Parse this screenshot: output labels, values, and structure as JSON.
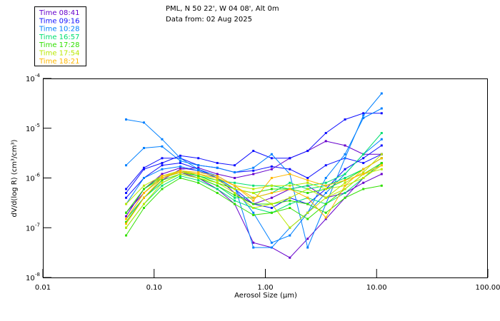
{
  "header": {
    "line1": "PML, N 50 22', W 04 08', Alt 0m",
    "line2": "Data from: 02 Aug 2025"
  },
  "chart_data": {
    "type": "line",
    "title": "PML, N 50 22', W 04 08', Alt 0m — Data from: 02 Aug 2025",
    "xlabel": "Aerosol Size (µm)",
    "ylabel": "dV/d(log R) (cm³/cm³)",
    "xscale": "log",
    "yscale": "log",
    "xlim": [
      0.01,
      100
    ],
    "ylim": [
      1e-08,
      0.0001
    ],
    "xticks": [
      0.01,
      0.1,
      1,
      10,
      100
    ],
    "xtick_labels": [
      "0.01",
      "0.10",
      "1.00",
      "10.00",
      "100.00"
    ],
    "yticks": [
      0.0001,
      1e-05,
      1e-06,
      1e-07,
      1e-08
    ],
    "ytick_exponents": [
      "-4",
      "-5",
      "-6",
      "-7",
      "-8"
    ],
    "ytick_base": "10",
    "legend_placement": "top-left",
    "grid": false,
    "x": [
      0.056,
      0.081,
      0.118,
      0.172,
      0.25,
      0.37,
      0.53,
      0.78,
      1.14,
      1.66,
      2.4,
      3.5,
      5.2,
      7.6,
      11.1
    ],
    "series": [
      {
        "name": "Time 08:41",
        "color": "#6600cc",
        "lines": [
          [
            2e-07,
            5e-07,
            1e-06,
            1.3e-06,
            1e-06,
            6e-07,
            3e-07,
            5e-08,
            4e-08,
            2.5e-08,
            6e-08,
            1.5e-07,
            4e-07,
            1e-06,
            2e-06
          ],
          [
            1.5e-07,
            4e-07,
            9e-07,
            1.5e-06,
            1.6e-06,
            1.2e-06,
            1e-06,
            1.2e-06,
            1.5e-06,
            2.5e-06,
            3.5e-06,
            5.5e-06,
            4.5e-06,
            3e-06,
            3e-06
          ],
          [
            1.7e-07,
            6e-07,
            1.2e-06,
            1.6e-06,
            1.4e-06,
            1e-06,
            5e-07,
            3e-07,
            4e-07,
            6e-07,
            7e-07,
            4e-07,
            5e-07,
            8e-07,
            1.2e-06
          ]
        ]
      },
      {
        "name": "Time 09:16",
        "color": "#1010ff",
        "lines": [
          [
            5e-07,
            1.5e-06,
            2e-06,
            2.8e-06,
            2.5e-06,
            2e-06,
            1.8e-06,
            3.5e-06,
            2.5e-06,
            2.5e-06,
            3.5e-06,
            8e-06,
            1.5e-05,
            2e-05,
            2e-05
          ],
          [
            6e-07,
            1.6e-06,
            2.5e-06,
            2.5e-06,
            1.8e-06,
            1.6e-06,
            1.3e-06,
            1.4e-06,
            1.7e-06,
            1.5e-06,
            1e-06,
            1.8e-06,
            2.5e-06,
            2e-06,
            3e-06
          ],
          [
            4e-07,
            1e-06,
            1.8e-06,
            2e-06,
            1.5e-06,
            1e-06,
            6e-07,
            3e-07,
            2.5e-07,
            4e-07,
            3e-07,
            6e-07,
            1.5e-06,
            2.5e-06,
            4.5e-06
          ]
        ]
      },
      {
        "name": "Time 10:28",
        "color": "#0080ff",
        "lines": [
          [
            1.5e-05,
            1.3e-05,
            6e-06,
            2.5e-06,
            1.5e-06,
            1.1e-06,
            7e-07,
            4e-08,
            4e-08,
            1e-07,
            2e-07,
            5e-07,
            1.2e-06,
            3e-06,
            6e-06
          ],
          [
            1.8e-06,
            4e-06,
            4.3e-06,
            2.2e-06,
            1.8e-06,
            1.6e-06,
            1.3e-06,
            1.6e-06,
            3e-06,
            1.2e-06,
            4e-08,
            3e-07,
            2.5e-06,
            1.8e-05,
            5e-05
          ],
          [
            3e-07,
            1e-06,
            1.5e-06,
            1.7e-06,
            1.4e-06,
            1e-06,
            6e-07,
            2e-07,
            5e-08,
            7e-08,
            2e-07,
            1e-06,
            3e-06,
            1.6e-05,
            2.5e-05
          ]
        ]
      },
      {
        "name": "Time 16:57",
        "color": "#00e070",
        "lines": [
          [
            2e-07,
            6e-07,
            1e-06,
            1.4e-06,
            1.1e-06,
            9e-07,
            8e-07,
            7e-07,
            7e-07,
            6e-07,
            7e-07,
            8e-07,
            1.2e-06,
            3e-06,
            8e-06
          ],
          [
            1.5e-07,
            4e-07,
            8e-07,
            1.2e-06,
            1e-06,
            7e-07,
            4e-07,
            4e-07,
            5e-07,
            8e-07,
            6e-07,
            7e-07,
            1e-06,
            1.5e-06,
            2.5e-06
          ],
          [
            1e-07,
            3e-07,
            7e-07,
            1.1e-06,
            9e-07,
            6e-07,
            3.5e-07,
            2.5e-07,
            2e-07,
            3e-07,
            4e-07,
            3e-07,
            5e-07,
            1e-06,
            2e-06
          ]
        ]
      },
      {
        "name": "Time 17:28",
        "color": "#30e000",
        "lines": [
          [
            7e-08,
            2.5e-07,
            6e-07,
            1e-06,
            8e-07,
            5e-07,
            3e-07,
            1.8e-07,
            2e-07,
            2.5e-07,
            1.5e-07,
            3e-07,
            6e-07,
            1.2e-06,
            2e-06
          ],
          [
            1.3e-07,
            4e-07,
            9e-07,
            1.2e-06,
            1e-06,
            7e-07,
            4.5e-07,
            3e-07,
            3e-07,
            3.5e-07,
            3e-07,
            2e-07,
            4e-07,
            6e-07,
            7e-07
          ],
          [
            2e-07,
            6e-07,
            1.1e-06,
            1.3e-06,
            1.1e-06,
            8e-07,
            6e-07,
            5e-07,
            6e-07,
            6e-07,
            5e-07,
            6e-07,
            9e-07,
            1.5e-06,
            2.5e-06
          ]
        ]
      },
      {
        "name": "Time 17:54",
        "color": "#b8e800",
        "lines": [
          [
            1e-07,
            3e-07,
            8e-07,
            1.2e-06,
            1e-06,
            8e-07,
            5e-07,
            2.5e-07,
            3e-07,
            4e-07,
            6e-07,
            4e-07,
            6e-07,
            1.2e-06,
            1.5e-06
          ],
          [
            1.5e-07,
            5e-07,
            1e-06,
            1.3e-06,
            1.2e-06,
            9e-07,
            6e-07,
            5e-07,
            3e-07,
            1e-07,
            2e-07,
            4e-07,
            8e-07,
            1.3e-06,
            3e-06
          ],
          [
            3e-07,
            7e-07,
            1.1e-06,
            1.4e-06,
            1.2e-06,
            1e-06,
            7e-07,
            6e-07,
            7e-07,
            7e-07,
            8e-07,
            6e-07,
            7e-07,
            1e-06,
            1.8e-06
          ]
        ]
      },
      {
        "name": "Time 18:21",
        "color": "#ffb800",
        "lines": [
          [
            1.2e-07,
            4e-07,
            1e-06,
            1.4e-06,
            1.3e-06,
            1.1e-06,
            7e-07,
            4e-07,
            5e-07,
            6e-07,
            4e-07,
            1.6e-07,
            7e-07,
            1.5e-06,
            2.5e-06
          ],
          [
            1.5e-07,
            5e-07,
            1.1e-06,
            1.3e-06,
            1.2e-06,
            1e-06,
            7e-07,
            3.5e-07,
            1e-06,
            1.2e-06,
            9e-07,
            7e-07,
            9e-07,
            1.2e-06,
            1.8e-06
          ]
        ]
      }
    ]
  }
}
